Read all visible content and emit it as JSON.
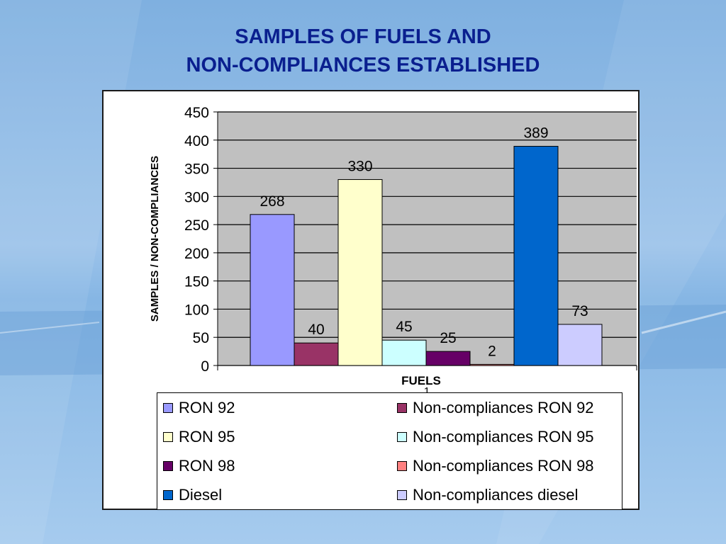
{
  "slide": {
    "title_line1": "SAMPLES OF FUELS AND",
    "title_line2": "NON-COMPLIANCES ESTABLISHED"
  },
  "chart_data": {
    "type": "bar",
    "categories": [
      "1"
    ],
    "xlabel": "FUELS",
    "ylabel": "SAMPLES / NON-COMPLIANCES",
    "ylim": [
      0,
      450
    ],
    "yticks": [
      0,
      50,
      100,
      150,
      200,
      250,
      300,
      350,
      400,
      450
    ],
    "grid": true,
    "legend_position": "bottom",
    "series": [
      {
        "name": "RON 92",
        "values": [
          268
        ],
        "color": "#9999ff"
      },
      {
        "name": "Non-compliances RON 92",
        "values": [
          40
        ],
        "color": "#993366"
      },
      {
        "name": "RON 95",
        "values": [
          330
        ],
        "color": "#ffffcc"
      },
      {
        "name": "Non-compliances RON 95",
        "values": [
          45
        ],
        "color": "#ccffff"
      },
      {
        "name": "RON 98",
        "values": [
          25
        ],
        "color": "#660066"
      },
      {
        "name": "Non-compliances RON 98",
        "values": [
          2
        ],
        "color": "#ff8080"
      },
      {
        "name": "Diesel",
        "values": [
          389
        ],
        "color": "#0066cc"
      },
      {
        "name": "Non-compliances diesel",
        "values": [
          73
        ],
        "color": "#ccccff"
      }
    ]
  }
}
